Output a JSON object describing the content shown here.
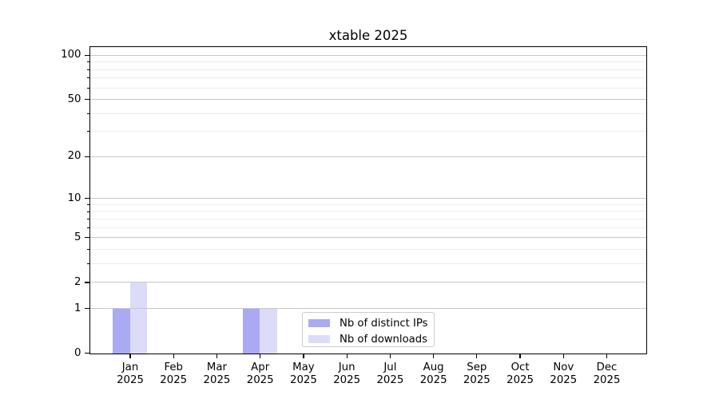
{
  "chart_data": {
    "type": "bar",
    "title": "xtable 2025",
    "year": "2025",
    "months": [
      "Jan",
      "Feb",
      "Mar",
      "Apr",
      "May",
      "Jun",
      "Jul",
      "Aug",
      "Sep",
      "Oct",
      "Nov",
      "Dec"
    ],
    "series": [
      {
        "name": "Nb of distinct IPs",
        "color": "#aaaaf2",
        "values": [
          1,
          0,
          0,
          1,
          0,
          0,
          0,
          0,
          0,
          0,
          0,
          0
        ]
      },
      {
        "name": "Nb of downloads",
        "color": "#dcdcf9",
        "values": [
          2,
          0,
          0,
          1,
          0,
          0,
          0,
          0,
          0,
          0,
          0,
          0
        ]
      }
    ],
    "y_axis": {
      "scale": "log1p",
      "major_ticks": [
        0,
        1,
        2,
        5,
        10,
        20,
        50,
        100
      ],
      "minor_ticks": [
        3,
        4,
        6,
        7,
        8,
        9,
        30,
        40,
        60,
        70,
        80,
        90
      ]
    },
    "x_axis": {
      "tick_label_format": "month-over-year"
    },
    "legend": {
      "position": "lower center"
    },
    "grid": "on",
    "colors": {
      "major_grid": "#c7c7c7",
      "minor_grid": "#ededed",
      "axis": "#000000",
      "background": "#ffffff"
    }
  }
}
